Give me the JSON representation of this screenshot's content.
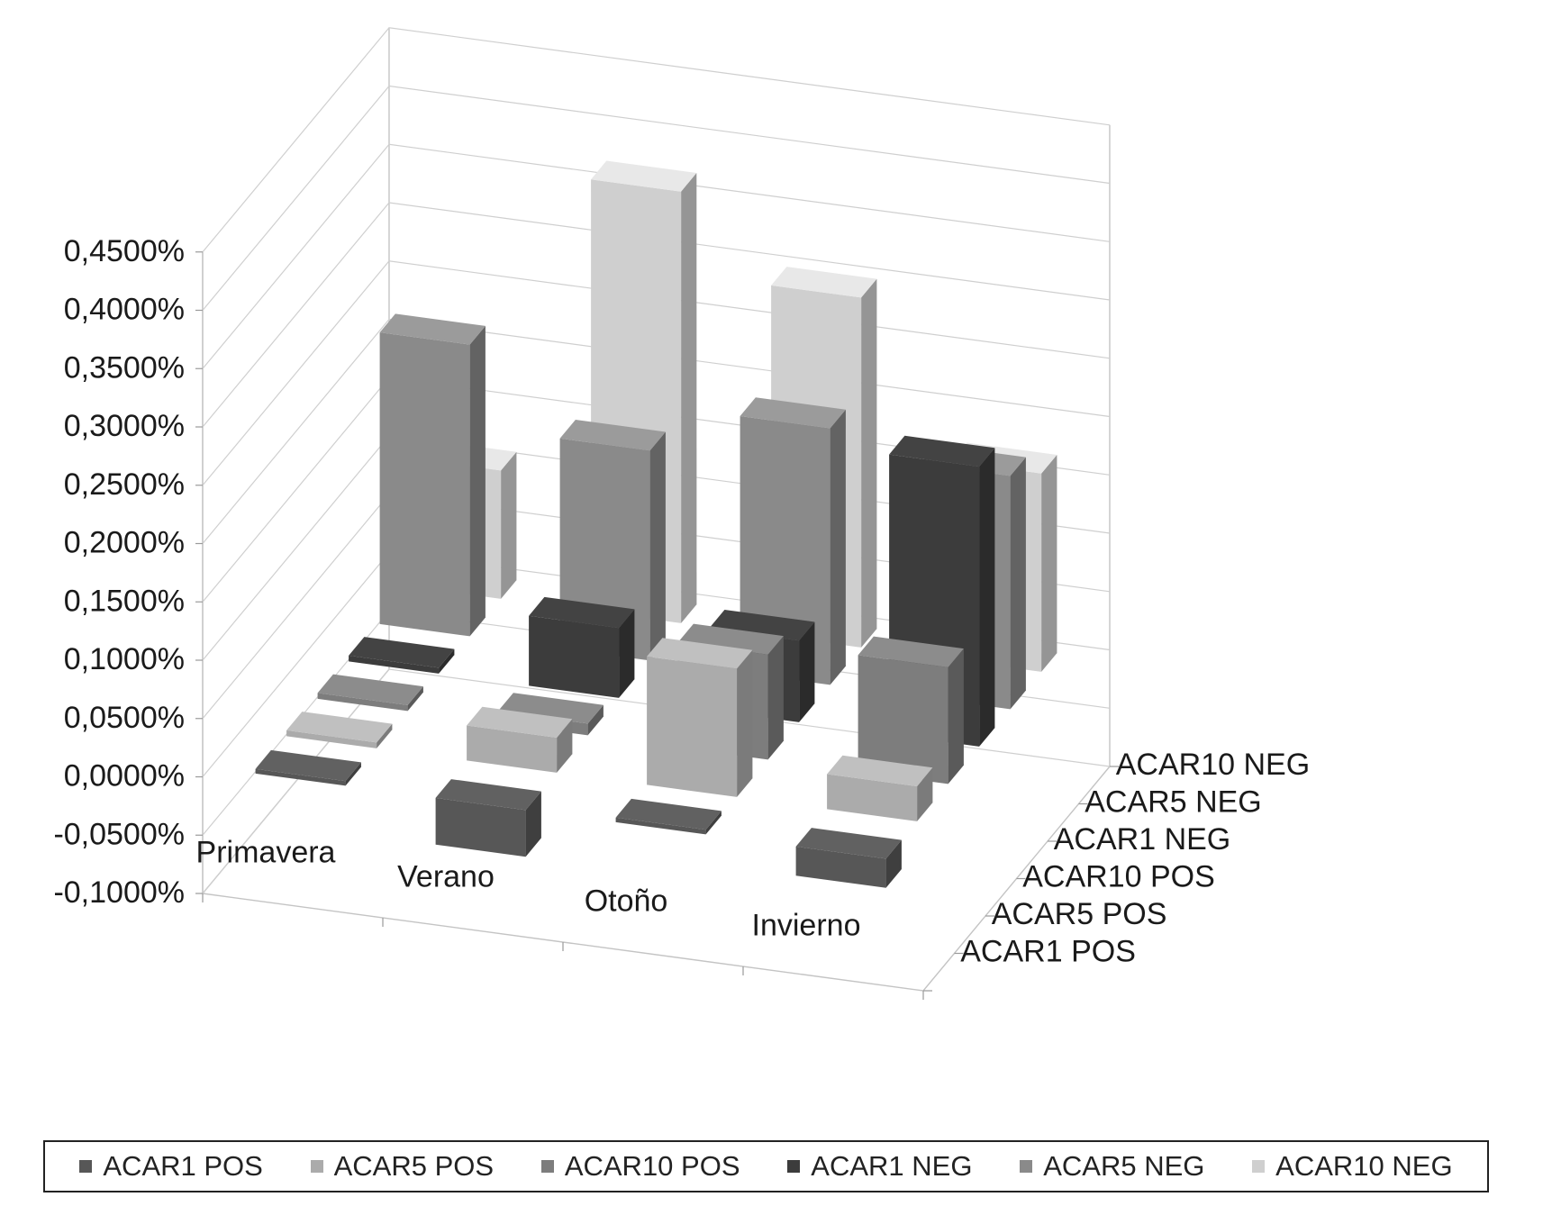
{
  "chart_data": {
    "type": "bar",
    "subtype": "3d-column",
    "title": "",
    "xlabel": "",
    "ylabel": "",
    "ylim": [
      -0.1,
      0.45
    ],
    "y_ticks": [
      "0,4500%",
      "0,4000%",
      "0,3500%",
      "0,3000%",
      "0,2500%",
      "0,2000%",
      "0,1500%",
      "0,1000%",
      "0,0500%",
      "0,0000%",
      "-0,0500%",
      "-0,1000%"
    ],
    "categories": [
      "Primavera",
      "Verano",
      "Otoño",
      "Invierno"
    ],
    "series": [
      {
        "name": "ACAR1 POS",
        "values": [
          0.0,
          -0.04,
          0.0,
          -0.025
        ],
        "color": "#575757"
      },
      {
        "name": "ACAR5 POS",
        "values": [
          0.005,
          0.03,
          0.11,
          0.03
        ],
        "color": "#ababab"
      },
      {
        "name": "ACAR10 POS",
        "values": [
          0.005,
          0.01,
          0.09,
          0.1
        ],
        "color": "#7d7d7d"
      },
      {
        "name": "ACAR1 NEG",
        "values": [
          0.005,
          0.06,
          0.07,
          0.24
        ],
        "color": "#3c3c3c"
      },
      {
        "name": "ACAR5 NEG",
        "values": [
          0.25,
          0.18,
          0.22,
          0.2
        ],
        "color": "#8a8a8a"
      },
      {
        "name": "ACAR10 NEG",
        "values": [
          0.11,
          0.37,
          0.3,
          0.17
        ],
        "color": "#cfcfcf"
      }
    ],
    "grid": true,
    "legend_position": "bottom"
  }
}
